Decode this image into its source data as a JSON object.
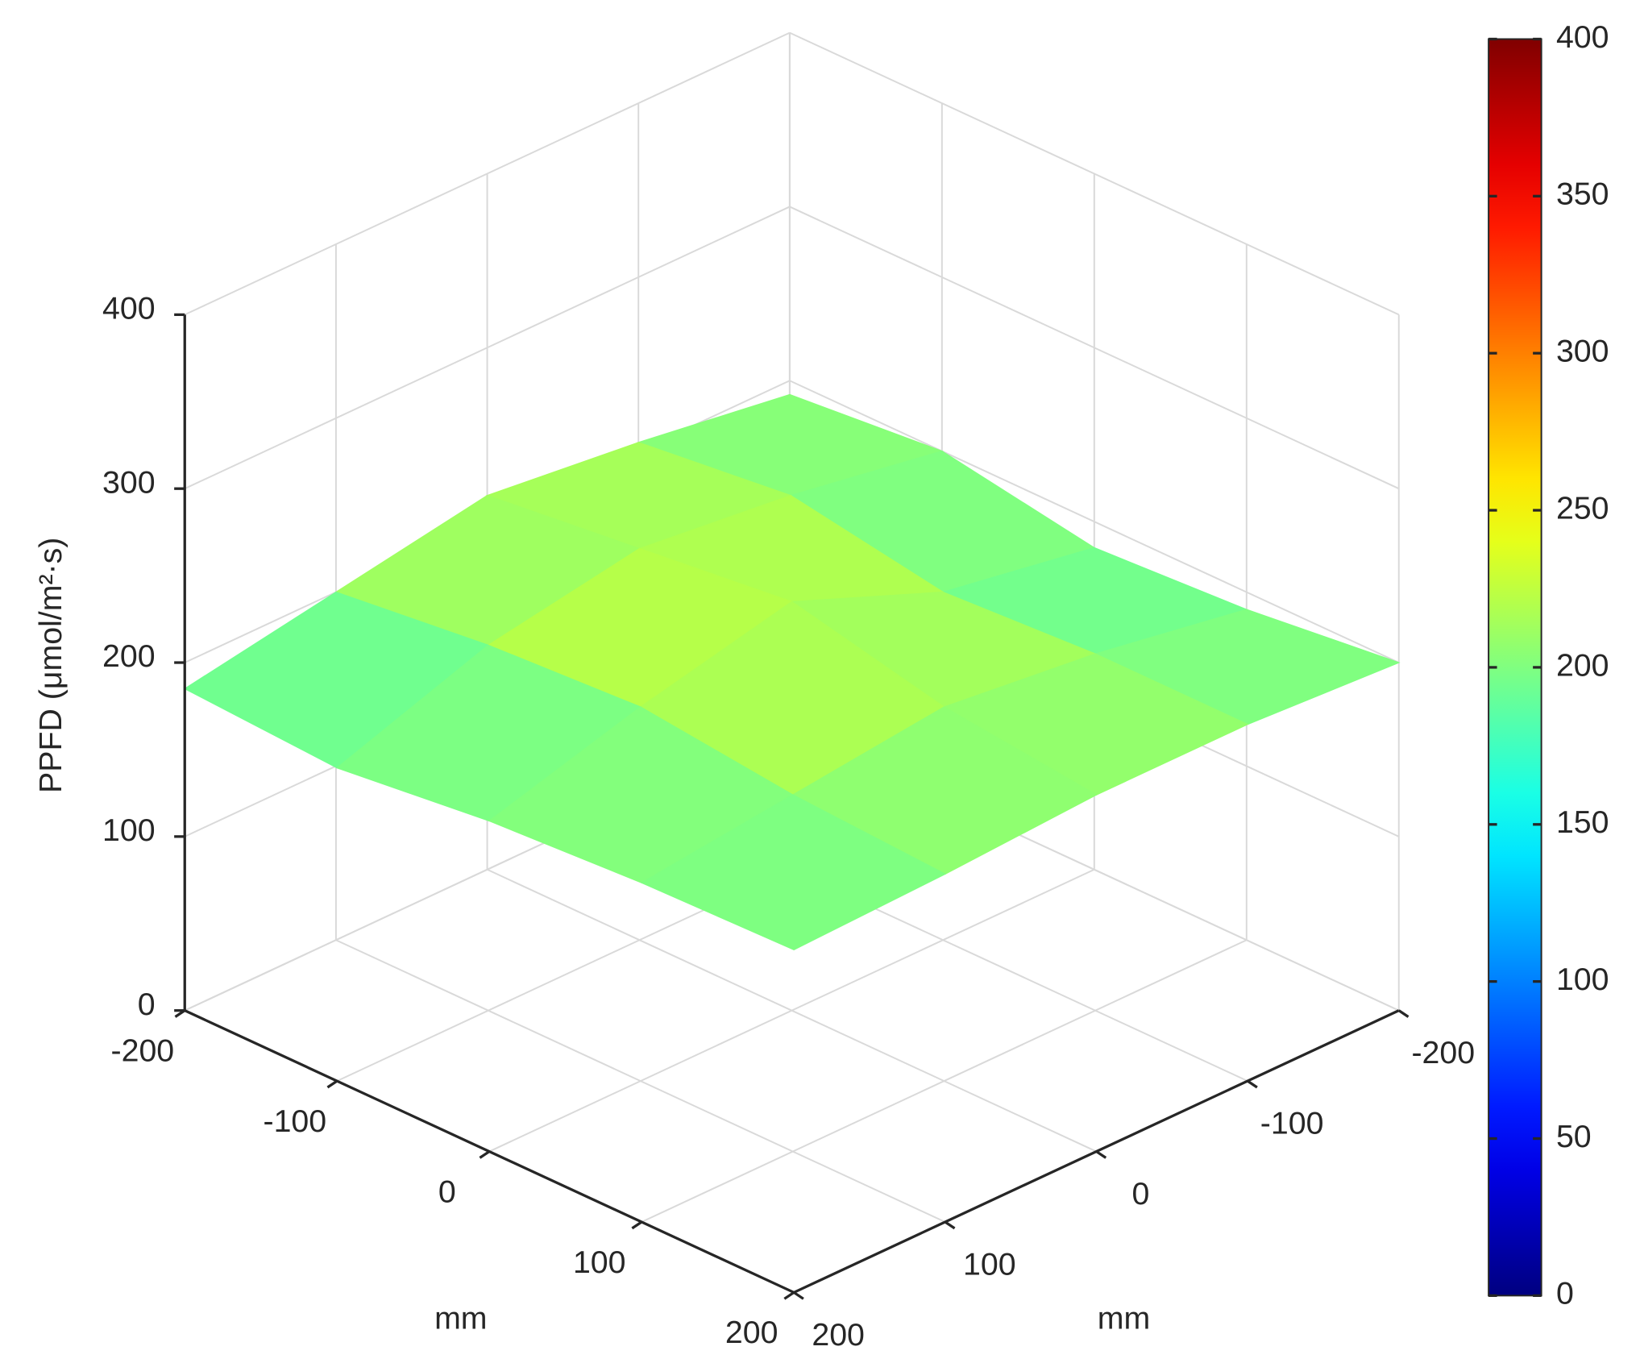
{
  "chart_data": {
    "type": "surface",
    "x": [
      -200,
      -100,
      0,
      100,
      200
    ],
    "y": [
      -200,
      -100,
      0,
      100,
      200
    ],
    "z": [
      [
        192,
        200,
        185,
        190,
        200
      ],
      [
        205,
        215,
        200,
        205,
        205
      ],
      [
        215,
        225,
        235,
        215,
        205
      ],
      [
        200,
        210,
        215,
        205,
        200
      ],
      [
        185,
        180,
        190,
        195,
        197
      ]
    ],
    "xlabel": "mm",
    "ylabel": "mm",
    "zlabel": "PPFD (μmol/m²·s)",
    "xlim": [
      -200,
      200
    ],
    "ylim": [
      -200,
      200
    ],
    "zlim": [
      0,
      400
    ],
    "xticks": [
      -200,
      -100,
      0,
      100,
      200
    ],
    "yticks": [
      -200,
      -100,
      0,
      100,
      200
    ],
    "zticks": [
      0,
      100,
      200,
      300,
      400
    ],
    "colormap": "jet",
    "clim": [
      0,
      400
    ],
    "cticks": [
      0,
      50,
      100,
      150,
      200,
      250,
      300,
      350,
      400
    ],
    "grid": true
  }
}
